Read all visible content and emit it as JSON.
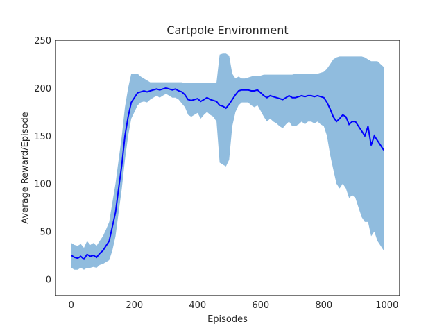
{
  "chart_data": {
    "type": "line",
    "title": "Cartpole Environment",
    "xlabel": "Episodes",
    "ylabel": "Average Reward/Episode",
    "xlim": [
      -50,
      1040
    ],
    "ylim": [
      -17,
      250
    ],
    "xticks": [
      0,
      200,
      400,
      600,
      800,
      1000
    ],
    "yticks": [
      0,
      50,
      100,
      150,
      200,
      250
    ],
    "grid": false,
    "colors": {
      "line": "#0000ff",
      "band": "#8ab8dc",
      "axes": "#262626"
    },
    "series": [
      {
        "x": [
          0,
          10,
          20,
          30,
          40,
          50,
          60,
          70,
          80,
          90,
          100,
          110,
          120,
          130,
          140,
          150,
          160,
          170,
          180,
          190,
          200,
          210,
          220,
          230,
          240,
          250,
          260,
          270,
          280,
          290,
          300,
          310,
          320,
          330,
          340,
          350,
          360,
          370,
          380,
          390,
          400,
          410,
          420,
          430,
          440,
          450,
          460,
          470,
          480,
          490,
          500,
          510,
          520,
          530,
          540,
          550,
          560,
          570,
          580,
          590,
          600,
          610,
          620,
          630,
          640,
          650,
          660,
          670,
          680,
          690,
          700,
          710,
          720,
          730,
          740,
          750,
          760,
          770,
          780,
          790,
          800,
          810,
          820,
          830,
          840,
          850,
          860,
          870,
          880,
          890,
          900,
          910,
          920,
          930,
          940,
          950,
          960,
          970,
          980,
          990
        ],
        "values": [
          25,
          23,
          22,
          24,
          21,
          26,
          24,
          25,
          23,
          27,
          30,
          35,
          40,
          55,
          70,
          95,
          120,
          150,
          170,
          185,
          190,
          195,
          196,
          197,
          196,
          197,
          198,
          199,
          198,
          199,
          200,
          199,
          198,
          199,
          197,
          196,
          193,
          188,
          187,
          188,
          189,
          186,
          188,
          190,
          188,
          187,
          186,
          182,
          181,
          179,
          183,
          188,
          193,
          197,
          198,
          198,
          198,
          197,
          197,
          198,
          195,
          192,
          190,
          192,
          191,
          190,
          189,
          188,
          190,
          192,
          190,
          190,
          191,
          192,
          191,
          192,
          192,
          191,
          192,
          191,
          190,
          185,
          178,
          170,
          165,
          168,
          172,
          170,
          162,
          165,
          165,
          160,
          155,
          150,
          160,
          140,
          150,
          145,
          140,
          135
        ],
        "lower": [
          12,
          10,
          10,
          12,
          10,
          12,
          12,
          13,
          12,
          15,
          16,
          18,
          20,
          30,
          45,
          70,
          95,
          125,
          150,
          168,
          175,
          182,
          185,
          186,
          185,
          188,
          190,
          192,
          190,
          192,
          194,
          192,
          190,
          190,
          188,
          184,
          180,
          172,
          170,
          172,
          174,
          168,
          172,
          175,
          172,
          170,
          165,
          122,
          120,
          118,
          125,
          160,
          175,
          182,
          185,
          185,
          185,
          182,
          180,
          182,
          176,
          170,
          165,
          168,
          165,
          163,
          160,
          158,
          162,
          165,
          160,
          160,
          162,
          165,
          162,
          165,
          165,
          163,
          165,
          162,
          160,
          150,
          130,
          115,
          100,
          95,
          100,
          95,
          85,
          88,
          85,
          75,
          65,
          60,
          60,
          45,
          50,
          40,
          35,
          30
        ],
        "upper": [
          38,
          36,
          35,
          37,
          33,
          40,
          36,
          38,
          35,
          40,
          45,
          52,
          60,
          80,
          100,
          125,
          150,
          180,
          200,
          215,
          215,
          215,
          212,
          210,
          208,
          206,
          206,
          206,
          206,
          206,
          206,
          206,
          206,
          206,
          206,
          206,
          205,
          205,
          205,
          205,
          205,
          205,
          205,
          205,
          205,
          205,
          206,
          235,
          236,
          236,
          234,
          215,
          210,
          212,
          210,
          210,
          211,
          212,
          213,
          213,
          213,
          214,
          214,
          214,
          214,
          214,
          214,
          214,
          214,
          214,
          214,
          215,
          215,
          215,
          215,
          215,
          215,
          215,
          215,
          216,
          217,
          220,
          225,
          230,
          232,
          233,
          233,
          233,
          233,
          233,
          233,
          233,
          233,
          232,
          230,
          228,
          228,
          228,
          225,
          222
        ]
      }
    ]
  }
}
